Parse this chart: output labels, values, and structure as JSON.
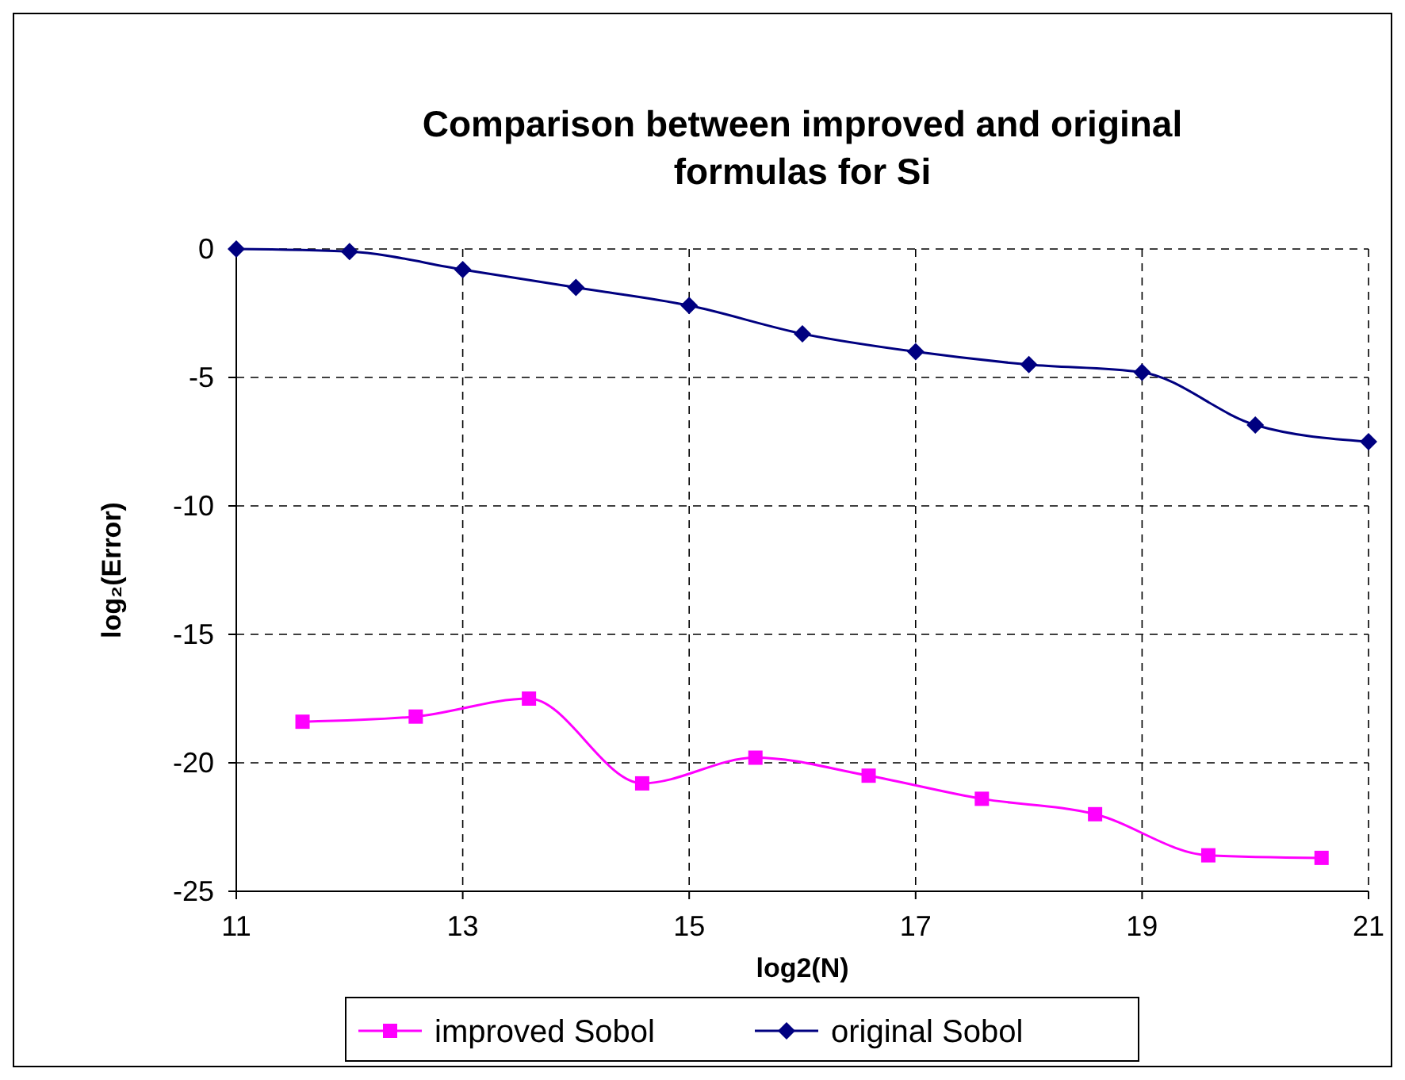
{
  "chart_data": {
    "type": "line",
    "title": "Comparison between improved and original formulas for Si",
    "xlabel": "log2(N)",
    "ylabel": "log₂(Error)",
    "xlim": [
      11,
      21
    ],
    "xticks": [
      11,
      13,
      15,
      17,
      19,
      21
    ],
    "ylim": [
      -25,
      0
    ],
    "yticks": [
      -25,
      -20,
      -15,
      -10,
      -5,
      0
    ],
    "grid": true,
    "legend": "bottom",
    "line_style": "solid",
    "series": [
      {
        "name": "improved Sobol",
        "color": "#ff00ff",
        "marker": "square",
        "x": [
          11.585,
          12.585,
          13.585,
          14.585,
          15.585,
          16.585,
          17.585,
          18.585,
          19.585,
          20.585
        ],
        "values": [
          -18.4,
          -18.2,
          -17.5,
          -20.8,
          -19.8,
          -20.5,
          -21.4,
          -22.0,
          -23.6,
          -23.7
        ]
      },
      {
        "name": "original Sobol",
        "color": "#000080",
        "marker": "diamond",
        "x": [
          11,
          12,
          13,
          14,
          15,
          16,
          17,
          18,
          19,
          20,
          21
        ],
        "values": [
          0,
          -0.1,
          -0.8,
          -1.5,
          -2.2,
          -3.3,
          -4.0,
          -4.5,
          -4.8,
          -6.85,
          -7.5
        ]
      }
    ]
  }
}
